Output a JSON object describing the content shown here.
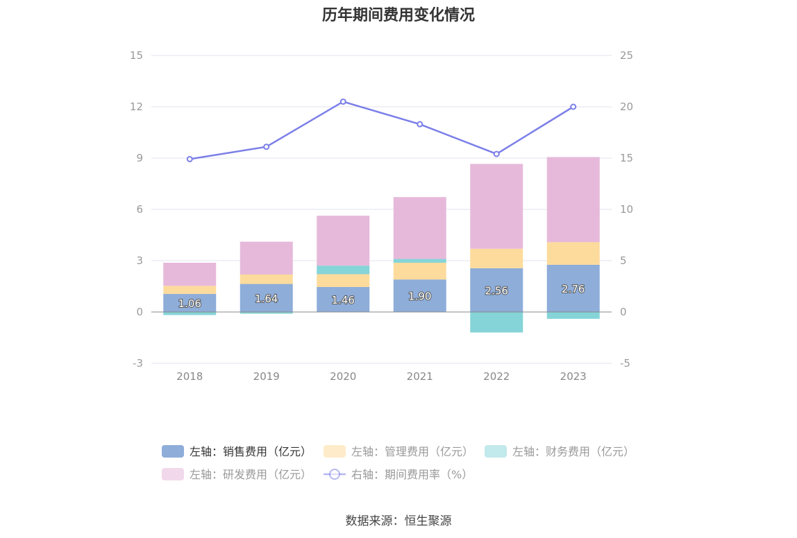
{
  "title": "历年期间费用变化情况",
  "source": "数据来源：恒生聚源",
  "chart_data": {
    "type": "bar",
    "stacked": true,
    "categories": [
      "2018",
      "2019",
      "2020",
      "2021",
      "2022",
      "2023"
    ],
    "y_left": {
      "ticks": [
        -3,
        0,
        3,
        6,
        9,
        12,
        15
      ],
      "range": [
        -3,
        15
      ]
    },
    "y_right": {
      "ticks": [
        -5,
        0,
        5,
        10,
        15,
        20,
        25
      ],
      "range": [
        -5,
        25
      ]
    },
    "grid": true,
    "legend_position": "bottom",
    "series": [
      {
        "name": "左轴：销售费用（亿元）",
        "axis": "left",
        "type": "bar",
        "color": "#8eadd9",
        "values": [
          1.06,
          1.64,
          1.46,
          1.9,
          2.56,
          2.76
        ],
        "labels": [
          "1.06",
          "1.64",
          "1.46",
          "1.90",
          "2.56",
          "2.76"
        ]
      },
      {
        "name": "左轴：管理费用（亿元）",
        "axis": "left",
        "type": "bar",
        "color": "#fddb9c",
        "values": [
          0.47,
          0.55,
          0.75,
          0.98,
          1.14,
          1.32
        ]
      },
      {
        "name": "左轴：财务费用（亿元）",
        "axis": "left",
        "type": "bar",
        "color": "#85d4d8",
        "values": [
          -0.18,
          -0.1,
          0.5,
          0.22,
          -1.2,
          -0.4
        ]
      },
      {
        "name": "左轴：研发费用（亿元）",
        "axis": "left",
        "type": "bar",
        "color": "#e6b9da",
        "values": [
          1.35,
          1.92,
          2.92,
          3.62,
          4.96,
          4.98
        ]
      },
      {
        "name": "右轴：期间费用率（%）",
        "axis": "right",
        "type": "line",
        "color": "#7b7fe8",
        "values": [
          14.9,
          16.1,
          20.5,
          18.3,
          15.4,
          20.0
        ]
      }
    ]
  }
}
